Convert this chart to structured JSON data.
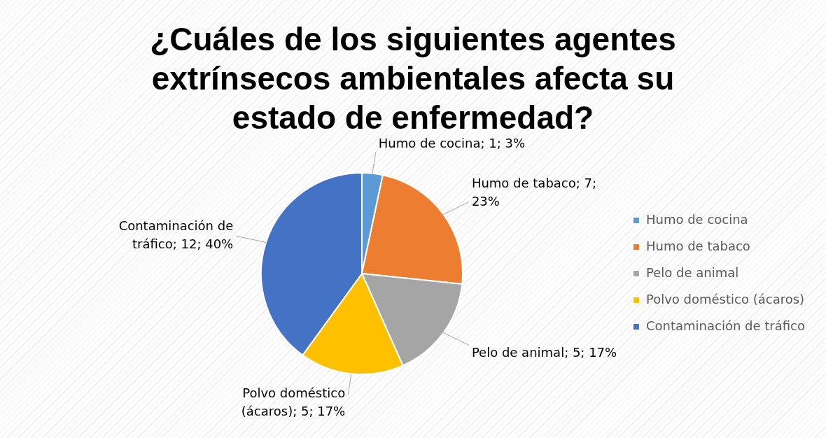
{
  "chart_data": {
    "type": "pie",
    "title": "¿Cuáles de los siguientes agentes extrínsecos ambientales afecta su estado de enfermedad?",
    "categories": [
      "Humo de cocina",
      "Humo de tabaco",
      "Pelo de animal",
      "Polvo doméstico (ácaros)",
      "Contaminación de tráfico"
    ],
    "values": [
      1,
      7,
      5,
      5,
      12
    ],
    "colors": [
      "#5b9bd5",
      "#ed7d31",
      "#a5a5a5",
      "#ffc000",
      "#4472c4"
    ],
    "value_labels": [
      "Humo de cocina; 1; 3%",
      "Humo de tabaco; 7; 23%",
      "Pelo de animal; 5; 17%",
      "Polvo doméstico (ácaros); 5; 17%",
      "Contaminación de tráfico; 12; 40%"
    ],
    "legend": "right"
  }
}
